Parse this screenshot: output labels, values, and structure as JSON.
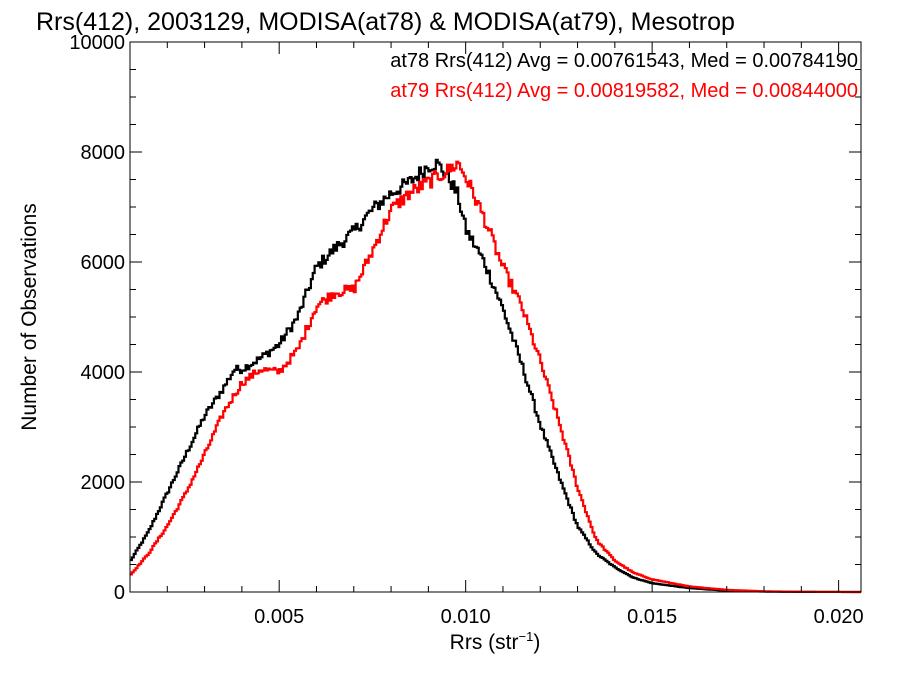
{
  "chart_data": {
    "type": "line",
    "style": "histogram-step",
    "title": "Rrs(412), 2003129, MODISA(at78) & MODISA(at79), Mesotrop",
    "xlabel_base": "Rrs (str",
    "xlabel_sup": "−1",
    "xlabel_close": ")",
    "ylabel": "Number of Observations",
    "xlim": [
      0.001,
      0.0206
    ],
    "ylim": [
      0,
      10000
    ],
    "xticks": [
      0.005,
      0.01,
      0.015,
      0.02
    ],
    "xtick_labels": [
      "0.005",
      "0.010",
      "0.015",
      "0.020"
    ],
    "yticks": [
      0,
      2000,
      4000,
      6000,
      8000,
      10000
    ],
    "ytick_labels": [
      "0",
      "2000",
      "4000",
      "6000",
      "8000",
      "10000"
    ],
    "grid": false,
    "legend_placement": "top-right",
    "series": [
      {
        "name": "at78",
        "legend": "at78 Rrs(412) Avg = 0.00761543, Med = 0.00784190",
        "color": "#000000",
        "x": [
          0.001,
          0.0015,
          0.002,
          0.0025,
          0.003,
          0.0035,
          0.0038,
          0.004,
          0.0045,
          0.005,
          0.0055,
          0.006,
          0.0065,
          0.007,
          0.0075,
          0.008,
          0.0085,
          0.009,
          0.0092,
          0.0095,
          0.0098,
          0.01,
          0.0105,
          0.011,
          0.0115,
          0.012,
          0.0125,
          0.013,
          0.0135,
          0.014,
          0.0145,
          0.015,
          0.016,
          0.017,
          0.018,
          0.019,
          0.0206
        ],
        "y": [
          550,
          1100,
          1800,
          2500,
          3200,
          3700,
          4050,
          4050,
          4250,
          4500,
          5000,
          5900,
          6250,
          6550,
          6950,
          7250,
          7450,
          7750,
          7800,
          7600,
          7200,
          6600,
          6000,
          5150,
          4150,
          3050,
          2100,
          1200,
          700,
          450,
          260,
          160,
          70,
          25,
          8,
          2,
          0
        ]
      },
      {
        "name": "at79",
        "legend": "at79 Rrs(412) Avg = 0.00819582, Med = 0.00844000",
        "color": "#ff0000",
        "x": [
          0.001,
          0.0015,
          0.002,
          0.0025,
          0.003,
          0.0035,
          0.004,
          0.0045,
          0.005,
          0.0055,
          0.006,
          0.0065,
          0.007,
          0.0075,
          0.008,
          0.0085,
          0.009,
          0.0095,
          0.0098,
          0.01,
          0.0105,
          0.011,
          0.0115,
          0.012,
          0.0125,
          0.013,
          0.0135,
          0.014,
          0.0145,
          0.015,
          0.016,
          0.017,
          0.018,
          0.019,
          0.0206
        ],
        "y": [
          300,
          700,
          1200,
          1800,
          2500,
          3250,
          3800,
          4050,
          4000,
          4400,
          5200,
          5450,
          5500,
          6200,
          6950,
          7250,
          7450,
          7650,
          7800,
          7550,
          6800,
          5900,
          5200,
          4200,
          3100,
          1900,
          950,
          570,
          350,
          230,
          100,
          40,
          12,
          4,
          0
        ]
      }
    ]
  }
}
